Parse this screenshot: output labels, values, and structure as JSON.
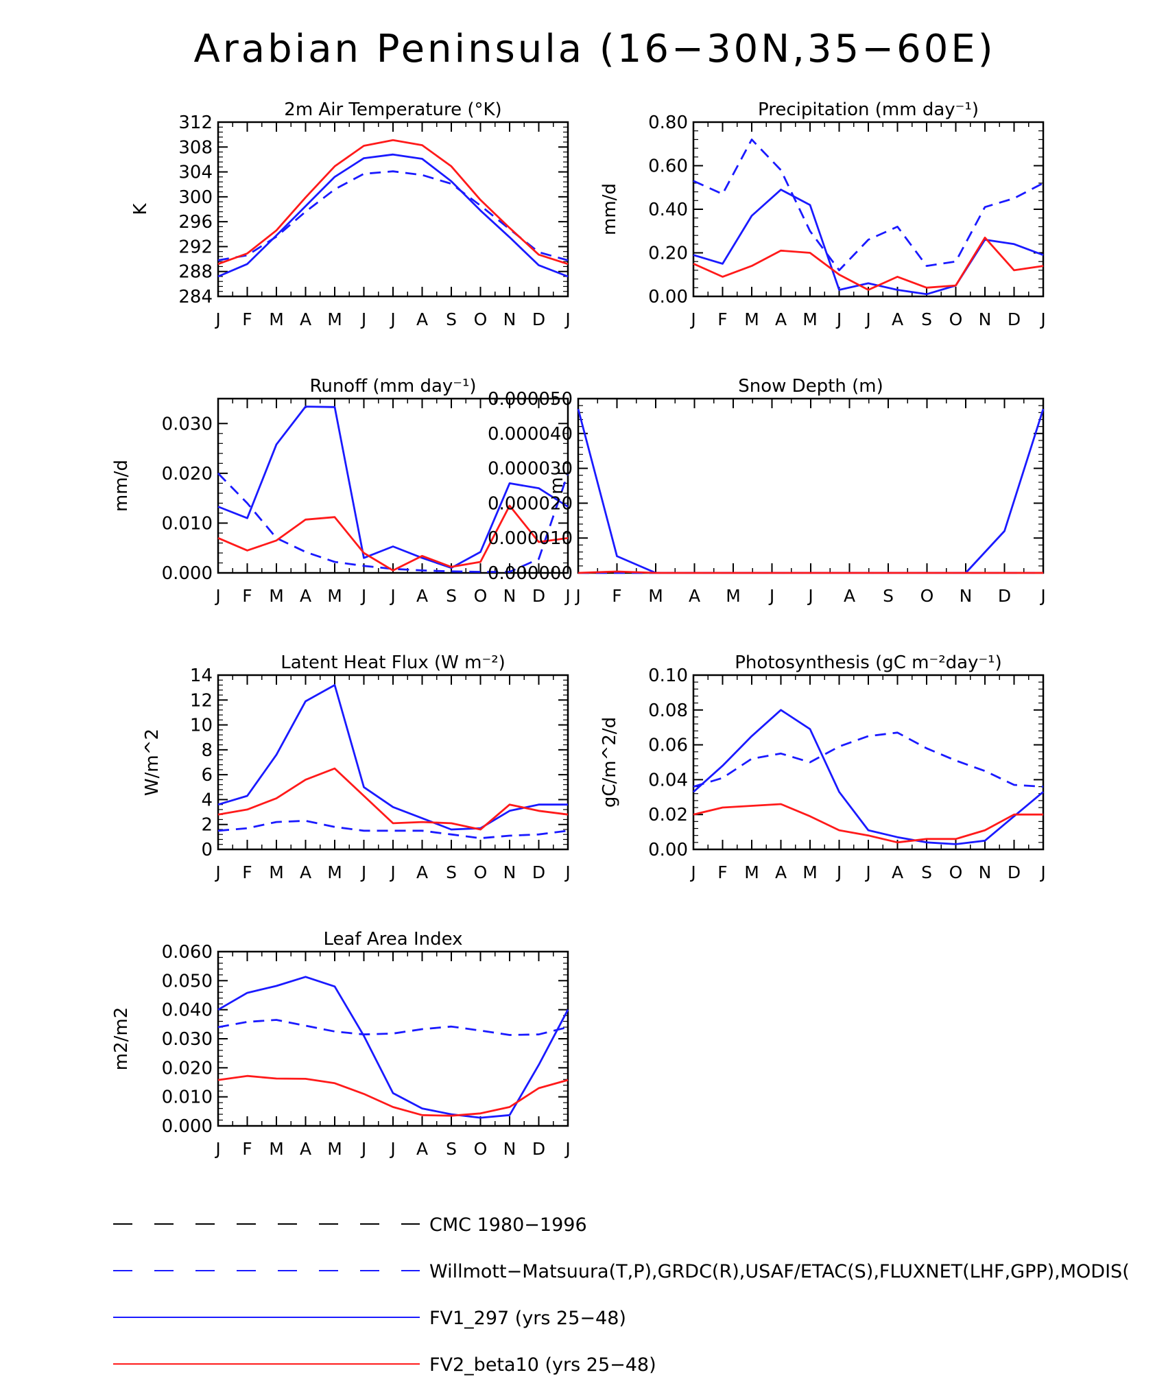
{
  "figure_title": "Arabian Peninsula (16−30N,35−60E)",
  "colors": {
    "obs": "#1a1aff",
    "fv1": "#1a1aff",
    "fv2": "#ff1a1a",
    "cmc": "#000000"
  },
  "legend": [
    {
      "label": "CMC 1980−1996",
      "color": "#000000",
      "style": "dash"
    },
    {
      "label": "Willmott−Matsuura(T,P),GRDC(R),USAF/ETAC(S),FLUXNET(LHF,GPP),MODIS(",
      "color": "#1a1aff",
      "style": "dash"
    },
    {
      "label": "FV1_297 (yrs 25−48)",
      "color": "#1a1aff",
      "style": "solid"
    },
    {
      "label": "FV2_beta10 (yrs 25−48)",
      "color": "#ff1a1a",
      "style": "solid"
    }
  ],
  "chart_data": [
    {
      "type": "line",
      "title": "2m Air Temperature (°K)",
      "ylabel": "K",
      "xlabel": "",
      "categories": [
        "J",
        "F",
        "M",
        "A",
        "M",
        "J",
        "J",
        "A",
        "S",
        "O",
        "N",
        "D",
        "J"
      ],
      "ylim": [
        284,
        312
      ],
      "yticks": [
        "312",
        "308",
        "304",
        "300",
        "296",
        "292",
        "288",
        "284"
      ],
      "series": [
        {
          "name": "Willmott−Matsuura",
          "style": "dash",
          "color": "#1a1aff",
          "values": [
            289.8,
            290.6,
            293.6,
            297.6,
            301.2,
            303.7,
            304.1,
            303.5,
            302.1,
            298.6,
            294.8,
            291.1,
            289.8
          ]
        },
        {
          "name": "FV1_297",
          "style": "solid",
          "color": "#1a1aff",
          "values": [
            287.2,
            289.2,
            293.8,
            298.5,
            303.2,
            306.2,
            306.8,
            306.1,
            302.5,
            297.8,
            293.5,
            289.0,
            287.2
          ]
        },
        {
          "name": "FV2_beta10",
          "style": "solid",
          "color": "#ff1a1a",
          "values": [
            289.2,
            290.9,
            294.6,
            299.9,
            304.9,
            308.2,
            309.1,
            308.3,
            304.9,
            299.5,
            295.0,
            290.7,
            289.2
          ]
        }
      ]
    },
    {
      "type": "line",
      "title": "Precipitation (mm day⁻¹)",
      "ylabel": "mm/d",
      "xlabel": "",
      "categories": [
        "J",
        "F",
        "M",
        "A",
        "M",
        "J",
        "J",
        "A",
        "S",
        "O",
        "N",
        "D",
        "J"
      ],
      "ylim": [
        0.0,
        0.8
      ],
      "yticks": [
        "0.80",
        "0.60",
        "0.40",
        "0.20",
        "0.00"
      ],
      "series": [
        {
          "name": "Willmott−Matsuura",
          "style": "dash",
          "color": "#1a1aff",
          "values": [
            0.53,
            0.47,
            0.72,
            0.58,
            0.3,
            0.12,
            0.26,
            0.32,
            0.14,
            0.16,
            0.41,
            0.45,
            0.52
          ]
        },
        {
          "name": "FV1_297",
          "style": "solid",
          "color": "#1a1aff",
          "values": [
            0.19,
            0.15,
            0.37,
            0.49,
            0.42,
            0.03,
            0.06,
            0.03,
            0.01,
            0.05,
            0.26,
            0.24,
            0.19
          ]
        },
        {
          "name": "FV2_beta10",
          "style": "solid",
          "color": "#ff1a1a",
          "values": [
            0.15,
            0.09,
            0.14,
            0.21,
            0.2,
            0.1,
            0.03,
            0.09,
            0.04,
            0.05,
            0.27,
            0.12,
            0.14
          ]
        }
      ]
    },
    {
      "type": "line",
      "title": "Runoff (mm day⁻¹)",
      "ylabel": "mm/d",
      "xlabel": "",
      "categories": [
        "J",
        "F",
        "M",
        "A",
        "M",
        "J",
        "J",
        "A",
        "S",
        "O",
        "N",
        "D",
        "J"
      ],
      "ylim": [
        0.0,
        0.035
      ],
      "yticks": [
        "0.030",
        "0.020",
        "0.010",
        "0.000"
      ],
      "tick_values": [
        0.03,
        0.02,
        0.01,
        0.0
      ],
      "series": [
        {
          "name": "GRDC",
          "style": "dash",
          "color": "#1a1aff",
          "values": [
            0.02,
            0.014,
            0.007,
            0.0042,
            0.0022,
            0.0014,
            0.0008,
            0.0005,
            0.0003,
            0.0002,
            0.0002,
            0.0028,
            0.02
          ]
        },
        {
          "name": "FV1_297",
          "style": "solid",
          "color": "#1a1aff",
          "values": [
            0.0133,
            0.011,
            0.0258,
            0.0334,
            0.0333,
            0.003,
            0.0053,
            0.003,
            0.001,
            0.0042,
            0.018,
            0.017,
            0.0133
          ]
        },
        {
          "name": "FV2_beta10",
          "style": "solid",
          "color": "#ff1a1a",
          "values": [
            0.007,
            0.0045,
            0.0065,
            0.0107,
            0.0112,
            0.004,
            0.0005,
            0.0034,
            0.0012,
            0.0022,
            0.0135,
            0.0062,
            0.007
          ]
        }
      ]
    },
    {
      "type": "line",
      "title": "Snow Depth (m)",
      "ylabel": "m",
      "xlabel": "",
      "categories": [
        "J",
        "F",
        "M",
        "A",
        "M",
        "J",
        "J",
        "A",
        "S",
        "O",
        "N",
        "D",
        "J"
      ],
      "ylim": [
        0.0,
        5e-05
      ],
      "yticks": [
        "0.000050",
        "0.000040",
        "0.000030",
        "0.000020",
        "0.000010",
        "0.000000"
      ],
      "series": [
        {
          "name": "USAF/ETAC",
          "style": "dash",
          "color": "#1a1aff",
          "values": [
            0,
            0,
            0,
            0,
            0,
            0,
            0,
            0,
            0,
            0,
            0,
            0,
            0
          ]
        },
        {
          "name": "FV1_297",
          "style": "solid",
          "color": "#1a1aff",
          "values": [
            4.7e-05,
            4.8e-06,
            0,
            0,
            0,
            0,
            0,
            0,
            0,
            0,
            0,
            1.2e-05,
            4.7e-05
          ]
        },
        {
          "name": "FV2_beta10",
          "style": "solid",
          "color": "#ff1a1a",
          "values": [
            0,
            4e-07,
            0,
            0,
            0,
            0,
            0,
            0,
            0,
            0,
            0,
            0,
            0
          ]
        }
      ]
    },
    {
      "type": "line",
      "title": "Latent Heat Flux (W m⁻²)",
      "ylabel": "W/m^2",
      "xlabel": "",
      "categories": [
        "J",
        "F",
        "M",
        "A",
        "M",
        "J",
        "J",
        "A",
        "S",
        "O",
        "N",
        "D",
        "J"
      ],
      "ylim": [
        0,
        14
      ],
      "yticks": [
        "14",
        "12",
        "10",
        "8",
        "6",
        "4",
        "2",
        "0"
      ],
      "series": [
        {
          "name": "FLUXNET",
          "style": "dash",
          "color": "#1a1aff",
          "values": [
            1.5,
            1.7,
            2.2,
            2.3,
            1.8,
            1.5,
            1.5,
            1.5,
            1.2,
            0.9,
            1.1,
            1.2,
            1.5
          ]
        },
        {
          "name": "FV1_297",
          "style": "solid",
          "color": "#1a1aff",
          "values": [
            3.6,
            4.3,
            7.6,
            11.9,
            13.2,
            5.0,
            3.4,
            2.5,
            1.6,
            1.7,
            3.1,
            3.6,
            3.6
          ]
        },
        {
          "name": "FV2_beta10",
          "style": "solid",
          "color": "#ff1a1a",
          "values": [
            2.8,
            3.2,
            4.1,
            5.6,
            6.5,
            4.3,
            2.1,
            2.2,
            2.1,
            1.6,
            3.6,
            3.1,
            2.8
          ]
        }
      ]
    },
    {
      "type": "line",
      "title": "Photosynthesis (gC m⁻²day⁻¹)",
      "ylabel": "gC/m^2/d",
      "xlabel": "",
      "categories": [
        "J",
        "F",
        "M",
        "A",
        "M",
        "J",
        "J",
        "A",
        "S",
        "O",
        "N",
        "D",
        "J"
      ],
      "ylim": [
        0.0,
        0.1
      ],
      "yticks": [
        "0.10",
        "0.08",
        "0.06",
        "0.04",
        "0.02",
        "0.00"
      ],
      "series": [
        {
          "name": "FLUXNET",
          "style": "dash",
          "color": "#1a1aff",
          "values": [
            0.036,
            0.041,
            0.052,
            0.055,
            0.05,
            0.059,
            0.065,
            0.067,
            0.058,
            0.051,
            0.045,
            0.037,
            0.036
          ]
        },
        {
          "name": "FV1_297",
          "style": "solid",
          "color": "#1a1aff",
          "values": [
            0.033,
            0.048,
            0.065,
            0.08,
            0.069,
            0.033,
            0.011,
            0.007,
            0.004,
            0.003,
            0.005,
            0.019,
            0.033
          ]
        },
        {
          "name": "FV2_beta10",
          "style": "solid",
          "color": "#ff1a1a",
          "values": [
            0.02,
            0.024,
            0.025,
            0.026,
            0.019,
            0.011,
            0.008,
            0.004,
            0.006,
            0.006,
            0.011,
            0.02,
            0.02
          ]
        }
      ]
    },
    {
      "type": "line",
      "title": "Leaf Area Index",
      "ylabel": "m2/m2",
      "xlabel": "",
      "categories": [
        "J",
        "F",
        "M",
        "A",
        "M",
        "J",
        "J",
        "A",
        "S",
        "O",
        "N",
        "D",
        "J"
      ],
      "ylim": [
        0.0,
        0.06
      ],
      "yticks": [
        "0.060",
        "0.050",
        "0.040",
        "0.030",
        "0.020",
        "0.010",
        "0.000"
      ],
      "series": [
        {
          "name": "MODIS",
          "style": "dash",
          "color": "#1a1aff",
          "values": [
            0.034,
            0.0358,
            0.0365,
            0.0345,
            0.0325,
            0.0315,
            0.0318,
            0.0333,
            0.0342,
            0.0328,
            0.0313,
            0.0315,
            0.034
          ]
        },
        {
          "name": "FV1_297",
          "style": "solid",
          "color": "#1a1aff",
          "values": [
            0.04,
            0.0458,
            0.0482,
            0.0513,
            0.048,
            0.031,
            0.0113,
            0.006,
            0.004,
            0.0028,
            0.0037,
            0.021,
            0.04
          ]
        },
        {
          "name": "FV2_beta10",
          "style": "solid",
          "color": "#ff1a1a",
          "values": [
            0.0158,
            0.0172,
            0.0163,
            0.0162,
            0.0147,
            0.011,
            0.0065,
            0.0037,
            0.0035,
            0.0043,
            0.0065,
            0.013,
            0.0158
          ]
        }
      ]
    }
  ]
}
